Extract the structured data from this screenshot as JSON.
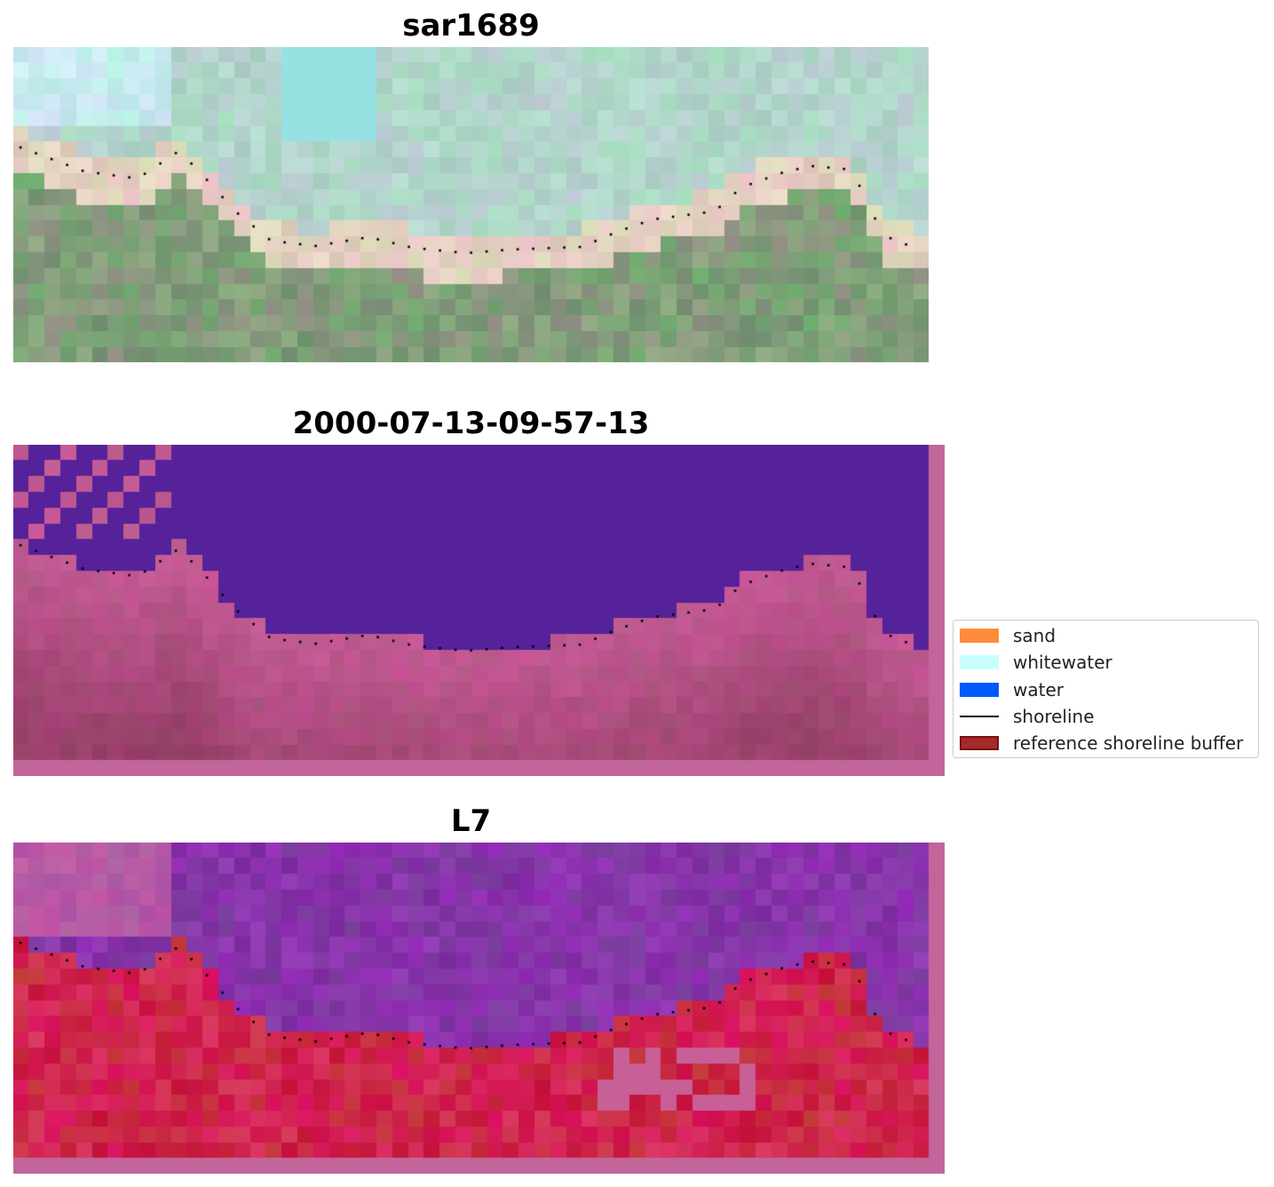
{
  "panels": [
    {
      "title": "sar1689",
      "mode": "rgb"
    },
    {
      "title": "2000-07-13-09-57-13",
      "mode": "class"
    },
    {
      "title": "L7",
      "mode": "index"
    }
  ],
  "legend": {
    "items": [
      {
        "label": "sand",
        "kind": "patch",
        "color": "#ff8c3a"
      },
      {
        "label": "whitewater",
        "kind": "patch",
        "color": "#c8ffff"
      },
      {
        "label": "water",
        "kind": "patch",
        "color": "#0059ff"
      },
      {
        "label": "shoreline",
        "kind": "line",
        "color": "#000000"
      },
      {
        "label": "reference shoreline buffer",
        "kind": "patch",
        "color": "#a52a2a",
        "edge": "#7a1010"
      }
    ]
  },
  "colors": {
    "water_class": "#55229a",
    "buffer_overlay": "#c2659a",
    "land_class": "#a04878",
    "index_water": "#7a2aa0",
    "index_land": "#c8143c"
  }
}
